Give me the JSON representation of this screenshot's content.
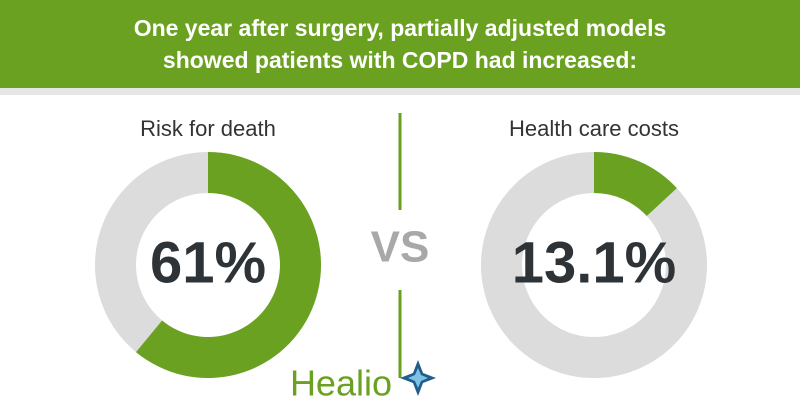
{
  "title": [
    "One year after surgery, partially adjusted models",
    "showed patients with COPD had increased:"
  ],
  "separator": "VS",
  "brand": "Healio",
  "chart_data": [
    {
      "type": "pie",
      "title": "Risk for death",
      "values": [
        61
      ],
      "value_labels": [
        "61%"
      ],
      "color": "#6aa121",
      "track_color": "#dcdcdc"
    },
    {
      "type": "pie",
      "title": "Health care costs",
      "values": [
        13.1
      ],
      "value_labels": [
        "13.1%"
      ],
      "color": "#6aa121",
      "track_color": "#dcdcdc"
    }
  ]
}
